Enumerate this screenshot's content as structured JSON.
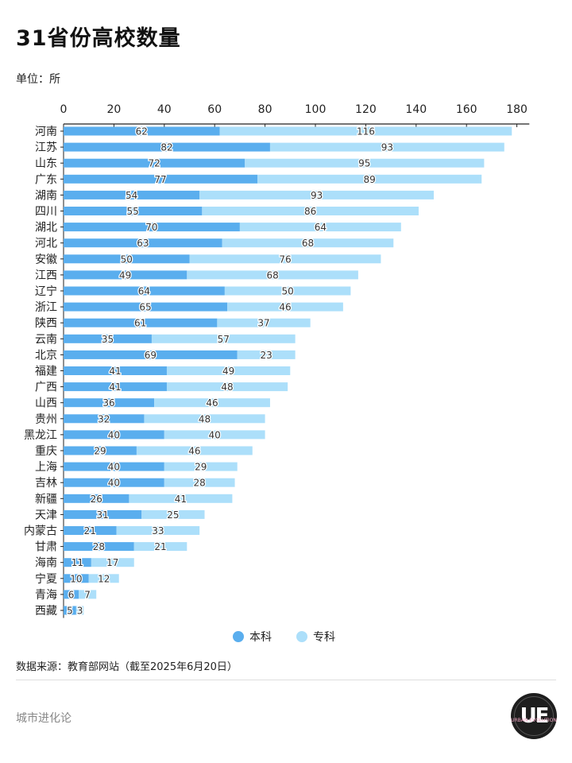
{
  "title": "31省份高校数量",
  "unit_label": "单位：所",
  "source": "数据来源：教育部网站（截至2025年6月20日）",
  "footer_brand": "城市进化论",
  "logo_text": "UE",
  "logo_subtext": "URBAN EVOLUTION",
  "colors": {
    "undergrad": "#5aaeee",
    "vocational": "#acdffa",
    "axis": "#222222"
  },
  "chart_data": {
    "type": "bar",
    "orientation": "horizontal",
    "stacked": true,
    "xlim": [
      0,
      190
    ],
    "xticks": [
      0,
      20,
      40,
      60,
      80,
      100,
      120,
      140,
      160,
      180
    ],
    "categories": [
      "河南",
      "江苏",
      "山东",
      "广东",
      "湖南",
      "四川",
      "湖北",
      "河北",
      "安徽",
      "江西",
      "辽宁",
      "浙江",
      "陕西",
      "云南",
      "北京",
      "福建",
      "广西",
      "山西",
      "贵州",
      "黑龙江",
      "重庆",
      "上海",
      "吉林",
      "新疆",
      "天津",
      "内蒙古",
      "甘肃",
      "海南",
      "宁夏",
      "青海",
      "西藏"
    ],
    "series": [
      {
        "name": "本科",
        "color": "#5aaeee",
        "values": [
          62,
          82,
          72,
          77,
          54,
          55,
          70,
          63,
          50,
          49,
          64,
          65,
          61,
          35,
          69,
          41,
          41,
          36,
          32,
          40,
          29,
          40,
          40,
          26,
          31,
          21,
          28,
          11,
          10,
          6,
          5
        ]
      },
      {
        "name": "专科",
        "color": "#acdffa",
        "values": [
          116,
          93,
          95,
          89,
          93,
          86,
          64,
          68,
          76,
          68,
          50,
          46,
          37,
          57,
          23,
          49,
          48,
          46,
          48,
          40,
          46,
          29,
          28,
          41,
          25,
          33,
          21,
          17,
          12,
          7,
          3
        ]
      }
    ],
    "legend": {
      "position": "bottom-center"
    },
    "grid": false
  }
}
